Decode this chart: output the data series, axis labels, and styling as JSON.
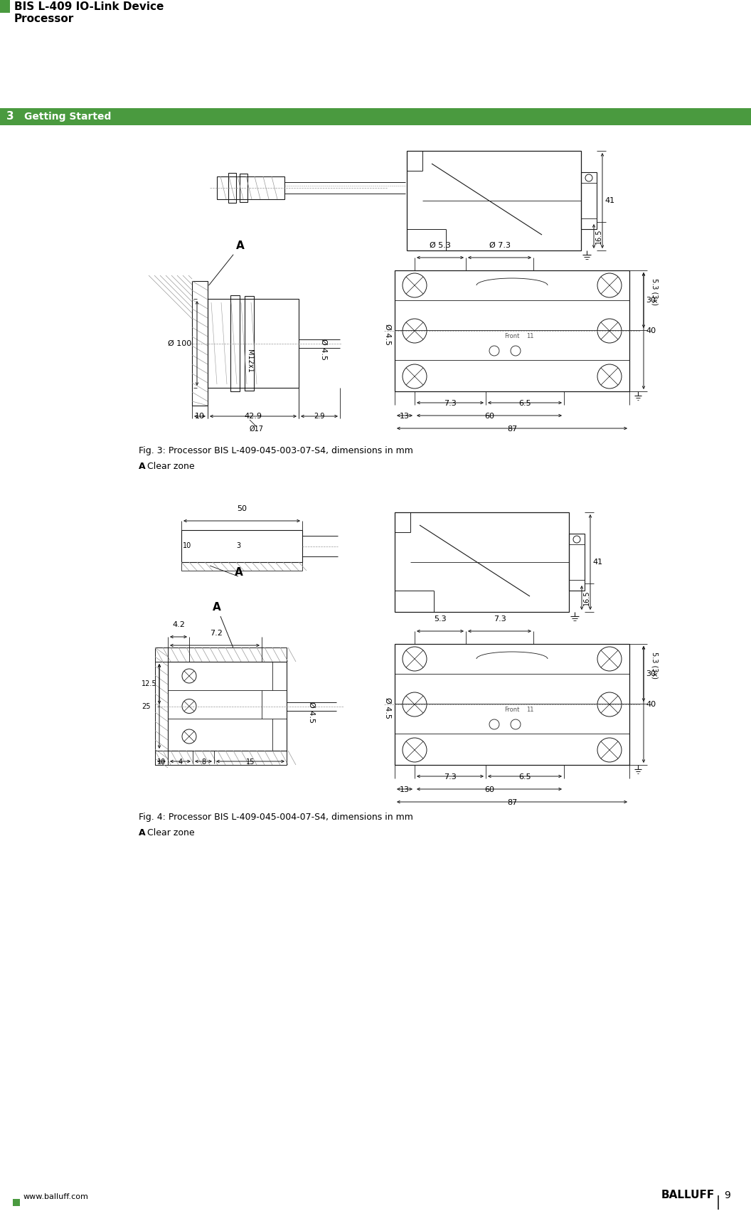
{
  "page_width": 10.56,
  "page_height": 17.16,
  "bg_color": "#ffffff",
  "green_color": "#4a9a3f",
  "title_line1": "BIS L-409 IO-Link Device",
  "title_line2": "Processor",
  "section_num": "3",
  "section_title": "Getting Started",
  "fig3_caption": "Fig. 3: Processor BIS L-409-045-003-07-S4, dimensions in mm",
  "fig4_caption": "Fig. 4: Processor BIS L-409-045-004-07-S4, dimensions in mm",
  "clearzone_label": "A",
  "clearzone_text": "  Clear zone",
  "footer_url": "www.balluff.com",
  "footer_brand": "BALLUFF",
  "footer_page": "9"
}
